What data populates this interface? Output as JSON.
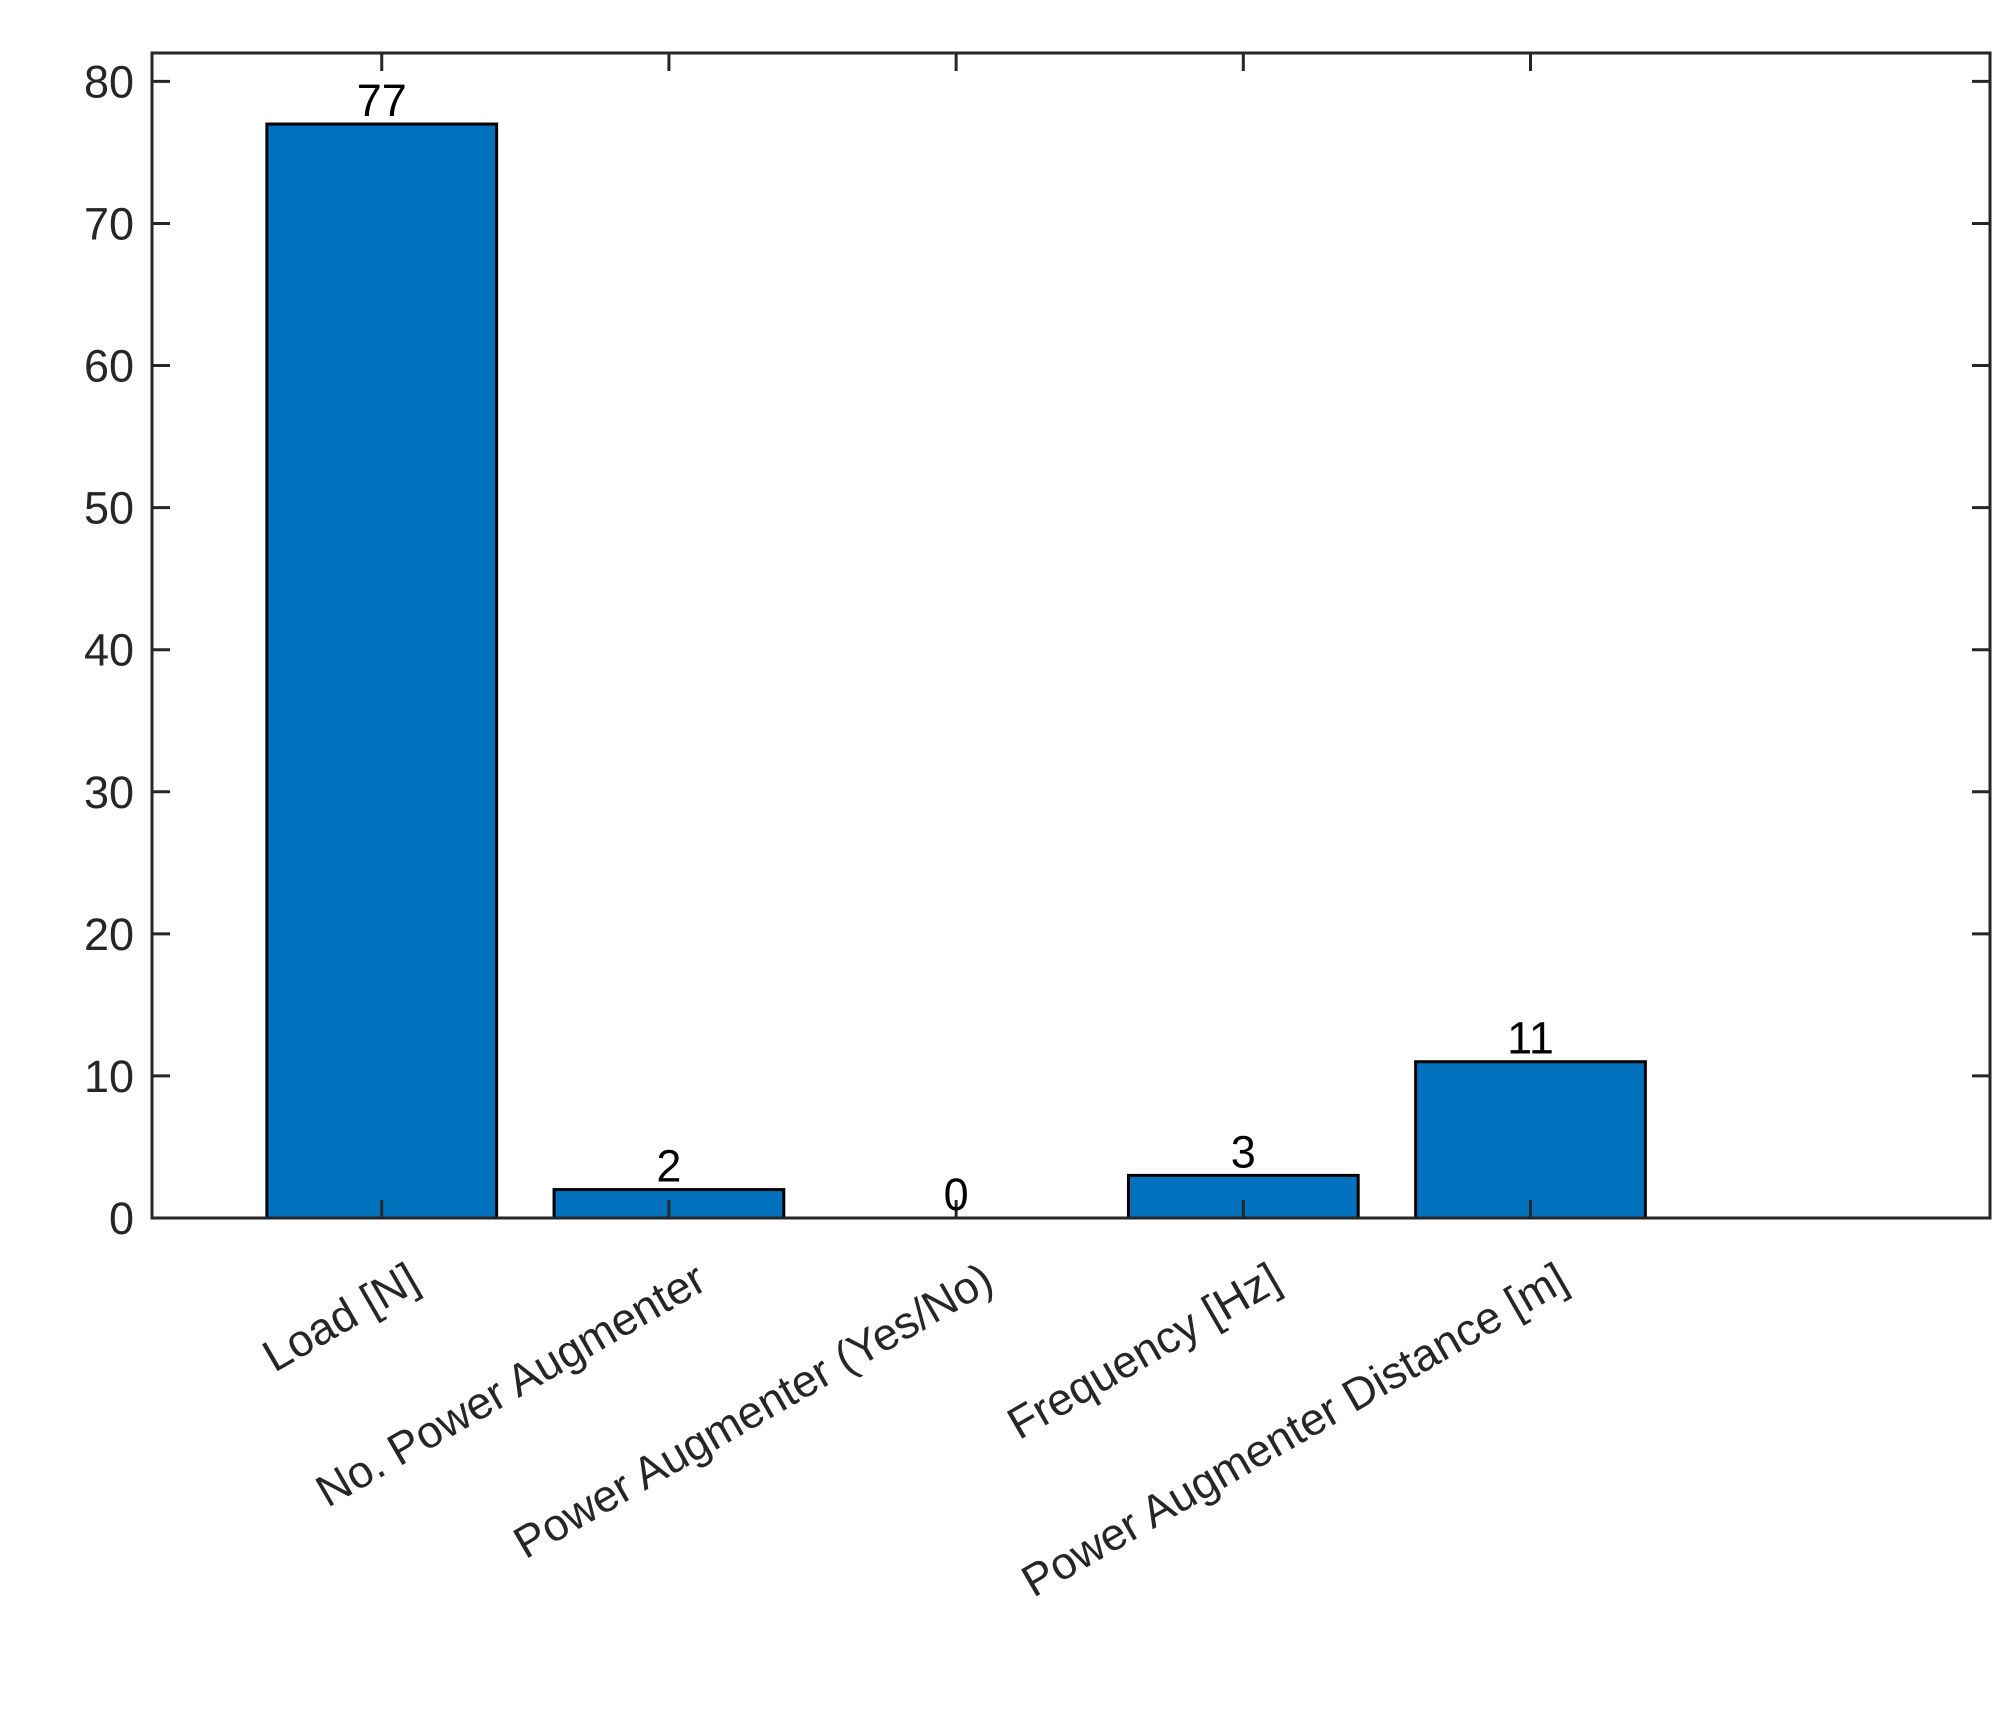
{
  "chart_data": {
    "type": "bar",
    "title": "",
    "xlabel": "",
    "ylabel": "",
    "categories": [
      "Load [N]",
      "No. Power Augmenter",
      "Power Augmenter (Yes/No)",
      "Frequency [Hz]",
      "Power Augmenter Distance [m]"
    ],
    "values": [
      77,
      2,
      0,
      3,
      11
    ],
    "data_labels": [
      "77",
      "2",
      "0",
      "3",
      "11"
    ],
    "ylim": [
      0,
      82
    ],
    "yticks": [
      0,
      10,
      20,
      30,
      40,
      50,
      60,
      70,
      80
    ],
    "xlim": [
      0.2,
      6.6
    ],
    "x_positions": [
      1,
      2,
      3,
      4,
      5
    ],
    "bar_color": "#0072BD",
    "edge_color": "#000000",
    "axis_color": "#262626",
    "grid": false,
    "legend": "none"
  }
}
